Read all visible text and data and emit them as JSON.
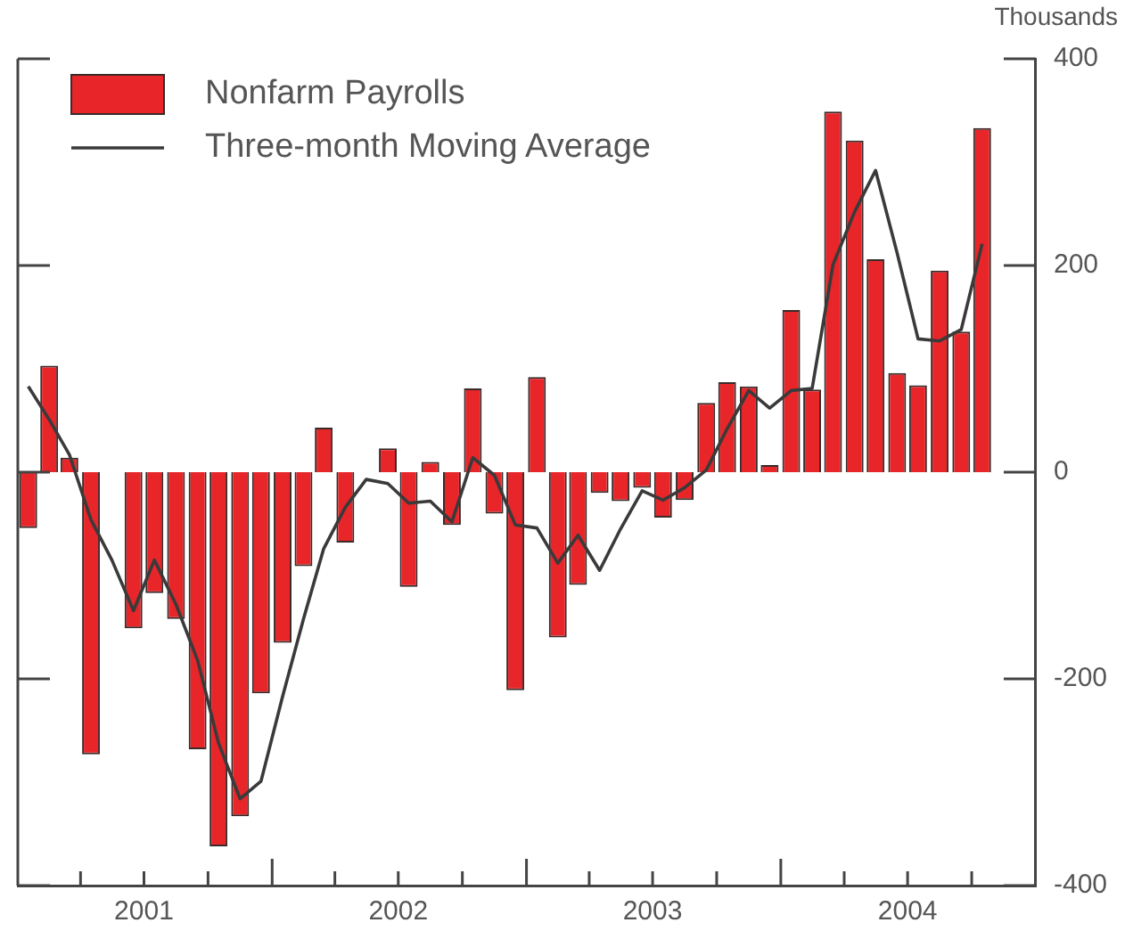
{
  "chart_data": {
    "type": "bar",
    "ylabel": "Thousands",
    "x": [
      "2001-01-16",
      "2001-02-15",
      "2001-03-16",
      "2001-04-16",
      "2001-05-16",
      "2001-06-16",
      "2001-07-16",
      "2001-08-16",
      "2001-09-16",
      "2001-10-16",
      "2001-11-16",
      "2001-12-16",
      "2002-01-16",
      "2002-02-15",
      "2002-03-16",
      "2002-04-16",
      "2002-05-16",
      "2002-06-16",
      "2002-07-16",
      "2002-08-16",
      "2002-09-16",
      "2002-10-16",
      "2002-11-16",
      "2002-12-16",
      "2003-01-16",
      "2003-02-15",
      "2003-03-16",
      "2003-04-16",
      "2003-05-16",
      "2003-06-16",
      "2003-07-16",
      "2003-08-16",
      "2003-09-16",
      "2003-10-16",
      "2003-11-16",
      "2003-12-16",
      "2004-01-16",
      "2004-02-15",
      "2004-03-16",
      "2004-04-16",
      "2004-05-16",
      "2004-06-16",
      "2004-07-16",
      "2004-08-16",
      "2004-09-16",
      "2004-10-16"
    ],
    "series": [
      {
        "name": "Nonfarm Payrolls",
        "color": "#e8262a",
        "values": [
          -54,
          103,
          14,
          -273,
          0,
          -151,
          -117,
          -142,
          -268,
          -362,
          -333,
          -214,
          -165,
          -91,
          43,
          -68,
          0,
          23,
          -111,
          10,
          -51,
          81,
          -40,
          -211,
          92,
          -160,
          -109,
          -20,
          -28,
          -15,
          -44,
          -27,
          67,
          87,
          83,
          7,
          157,
          80,
          349,
          321,
          206,
          96,
          84,
          195,
          136,
          333
        ]
      },
      {
        "name": "Three-month Moving Average",
        "type": "line",
        "color": "#3a3a3a",
        "values": [
          83,
          51,
          17,
          -46,
          -85,
          -134,
          -85,
          -128,
          -182,
          -262,
          -316,
          -299,
          -217,
          -142,
          -74,
          -34,
          -7,
          -11,
          -30,
          -28,
          -48,
          14,
          -3,
          -51,
          -54,
          -88,
          -61,
          -95,
          -55,
          -18,
          -27,
          -15,
          2,
          42,
          79,
          62,
          79,
          81,
          201,
          252,
          292,
          212,
          129,
          127,
          138,
          221
        ]
      }
    ],
    "xlim": [
      "2001-01",
      "2005-01"
    ],
    "xticks": [
      {
        "value": "2001-04",
        "label": null
      },
      {
        "value": "2001-07",
        "label": "2001"
      },
      {
        "value": "2001-10",
        "label": null
      },
      {
        "value": "2002-01",
        "label": null
      },
      {
        "value": "2002-04",
        "label": null
      },
      {
        "value": "2002-07",
        "label": "2002"
      },
      {
        "value": "2002-10",
        "label": null
      },
      {
        "value": "2003-01",
        "label": null
      },
      {
        "value": "2003-04",
        "label": null
      },
      {
        "value": "2003-07",
        "label": "2003"
      },
      {
        "value": "2003-10",
        "label": null
      },
      {
        "value": "2004-01",
        "label": null
      },
      {
        "value": "2004-04",
        "label": null
      },
      {
        "value": "2004-07",
        "label": "2004"
      },
      {
        "value": "2004-10",
        "label": null
      }
    ],
    "ylim": [
      -400,
      400
    ],
    "yticks": [
      -400,
      -200,
      0,
      200,
      400
    ],
    "grid": false,
    "legend": "top left",
    "marker": "none",
    "line_style": "solid"
  }
}
